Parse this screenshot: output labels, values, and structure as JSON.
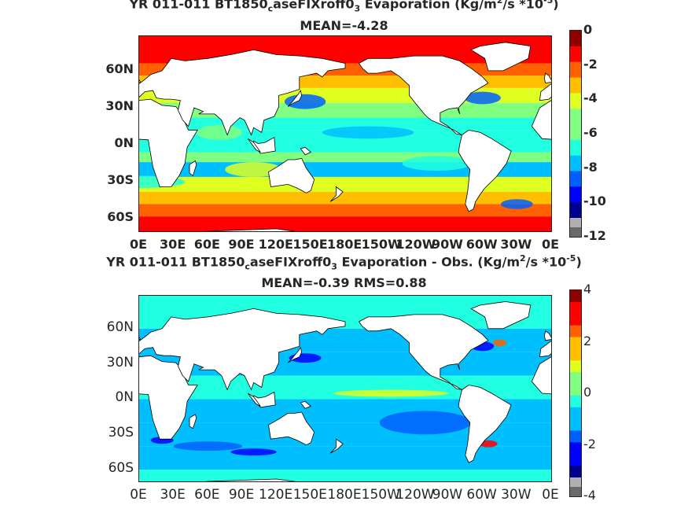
{
  "maps": [
    {
      "title_prefix": "YR 011-011 BT1850",
      "title_sub": "c",
      "title_mid": "aseFIXroff0",
      "title_sub2": "3",
      "title_suffix": "  Evaporation (Kg/m",
      "title_sup": "2",
      "title_suffix2": "/s *10",
      "title_sup2": "-5",
      "title_end": ")",
      "stats": "MEAN=-4.28",
      "lat_labels": [
        "60N",
        "30N",
        "0N",
        "30S",
        "60S"
      ],
      "lon_labels": [
        "0E",
        "30E",
        "60E",
        "90E",
        "120E",
        "150E",
        "180E",
        "150W",
        "120W",
        "90W",
        "60W",
        "30W",
        "0E"
      ],
      "colorbar": {
        "min": -12,
        "max": 0,
        "ticks": [
          "0",
          "-2",
          "-4",
          "-6",
          "-8",
          "-10",
          "-12"
        ]
      }
    },
    {
      "title_prefix": "YR 011-011 BT1850",
      "title_sub": "c",
      "title_mid": "aseFIXroff0",
      "title_sub2": "3",
      "title_suffix": " Evaporation - Obs. (Kg/m",
      "title_sup": "2",
      "title_suffix2": "/s *10",
      "title_sup2": "-5",
      "title_end": ")",
      "stats": "MEAN=-0.39   RMS=0.88",
      "lat_labels": [
        "60N",
        "30N",
        "0N",
        "30S",
        "60S"
      ],
      "lon_labels": [
        "0E",
        "30E",
        "60E",
        "90E",
        "120E",
        "150E",
        "180E",
        "150W",
        "120W",
        "90W",
        "60W",
        "30W",
        "0E"
      ],
      "colorbar": {
        "min": -4,
        "max": 4,
        "ticks": [
          "4",
          "2",
          "0",
          "-2",
          "-4"
        ]
      }
    }
  ],
  "colors": {
    "jet": [
      "#00008f",
      "#0000ff",
      "#0060ff",
      "#00bfff",
      "#20ffdf",
      "#80ff80",
      "#dfff20",
      "#ffbf00",
      "#ff6000",
      "#ff0000",
      "#8f0000"
    ],
    "land": "#ffffff",
    "coast": "#000000"
  }
}
